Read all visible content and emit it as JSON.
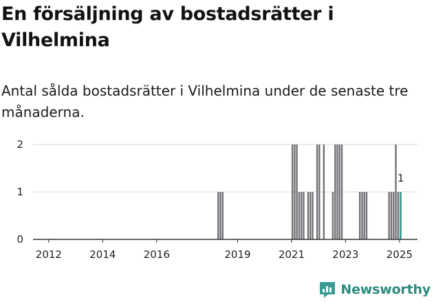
{
  "header": {
    "title": "En försäljning av bostadsrätter i Vilhelmina",
    "subtitle": "Antal sålda bostadsrätter i Vilhelmina under de senaste tre månaderna."
  },
  "brand": {
    "name": "Newsworthy",
    "logo_icon": "newsworthy-logo-icon",
    "color": "#2e8b7e"
  },
  "chart_data": {
    "type": "bar",
    "title": "En försäljning av bostadsrätter i Vilhelmina",
    "subtitle": "Antal sålda bostadsrätter i Vilhelmina under de senaste tre månaderna.",
    "xlabel": "",
    "ylabel": "",
    "x_ticks": [
      "2012",
      "2014",
      "2016",
      "2019",
      "2021",
      "2023",
      "2025"
    ],
    "y_ticks": [
      0,
      1,
      2
    ],
    "ylim": [
      0,
      2
    ],
    "grid": true,
    "colors": {
      "bar": "#6f6f74",
      "highlight": "#3a9c94"
    },
    "series": [
      {
        "points": [
          {
            "x": "2018-04",
            "y": 1
          },
          {
            "x": "2018-05",
            "y": 1
          },
          {
            "x": "2018-06",
            "y": 1
          },
          {
            "x": "2021-01",
            "y": 2
          },
          {
            "x": "2021-02",
            "y": 2
          },
          {
            "x": "2021-03",
            "y": 2
          },
          {
            "x": "2021-04",
            "y": 1
          },
          {
            "x": "2021-05",
            "y": 1
          },
          {
            "x": "2021-06",
            "y": 1
          },
          {
            "x": "2021-08",
            "y": 1
          },
          {
            "x": "2021-09",
            "y": 1
          },
          {
            "x": "2021-10",
            "y": 1
          },
          {
            "x": "2021-12",
            "y": 2
          },
          {
            "x": "2022-01",
            "y": 2
          },
          {
            "x": "2022-03",
            "y": 2
          },
          {
            "x": "2022-07",
            "y": 1
          },
          {
            "x": "2022-08",
            "y": 2
          },
          {
            "x": "2022-09",
            "y": 2
          },
          {
            "x": "2022-10",
            "y": 2
          },
          {
            "x": "2022-11",
            "y": 2
          },
          {
            "x": "2023-07",
            "y": 1
          },
          {
            "x": "2023-08",
            "y": 1
          },
          {
            "x": "2023-09",
            "y": 1
          },
          {
            "x": "2023-10",
            "y": 1
          },
          {
            "x": "2024-08",
            "y": 1
          },
          {
            "x": "2024-09",
            "y": 1
          },
          {
            "x": "2024-10",
            "y": 1
          },
          {
            "x": "2024-11",
            "y": 2
          },
          {
            "x": "2024-12",
            "y": 1
          }
        ]
      }
    ],
    "highlight": {
      "x": "2025-01",
      "y": 1,
      "label": "1"
    }
  }
}
